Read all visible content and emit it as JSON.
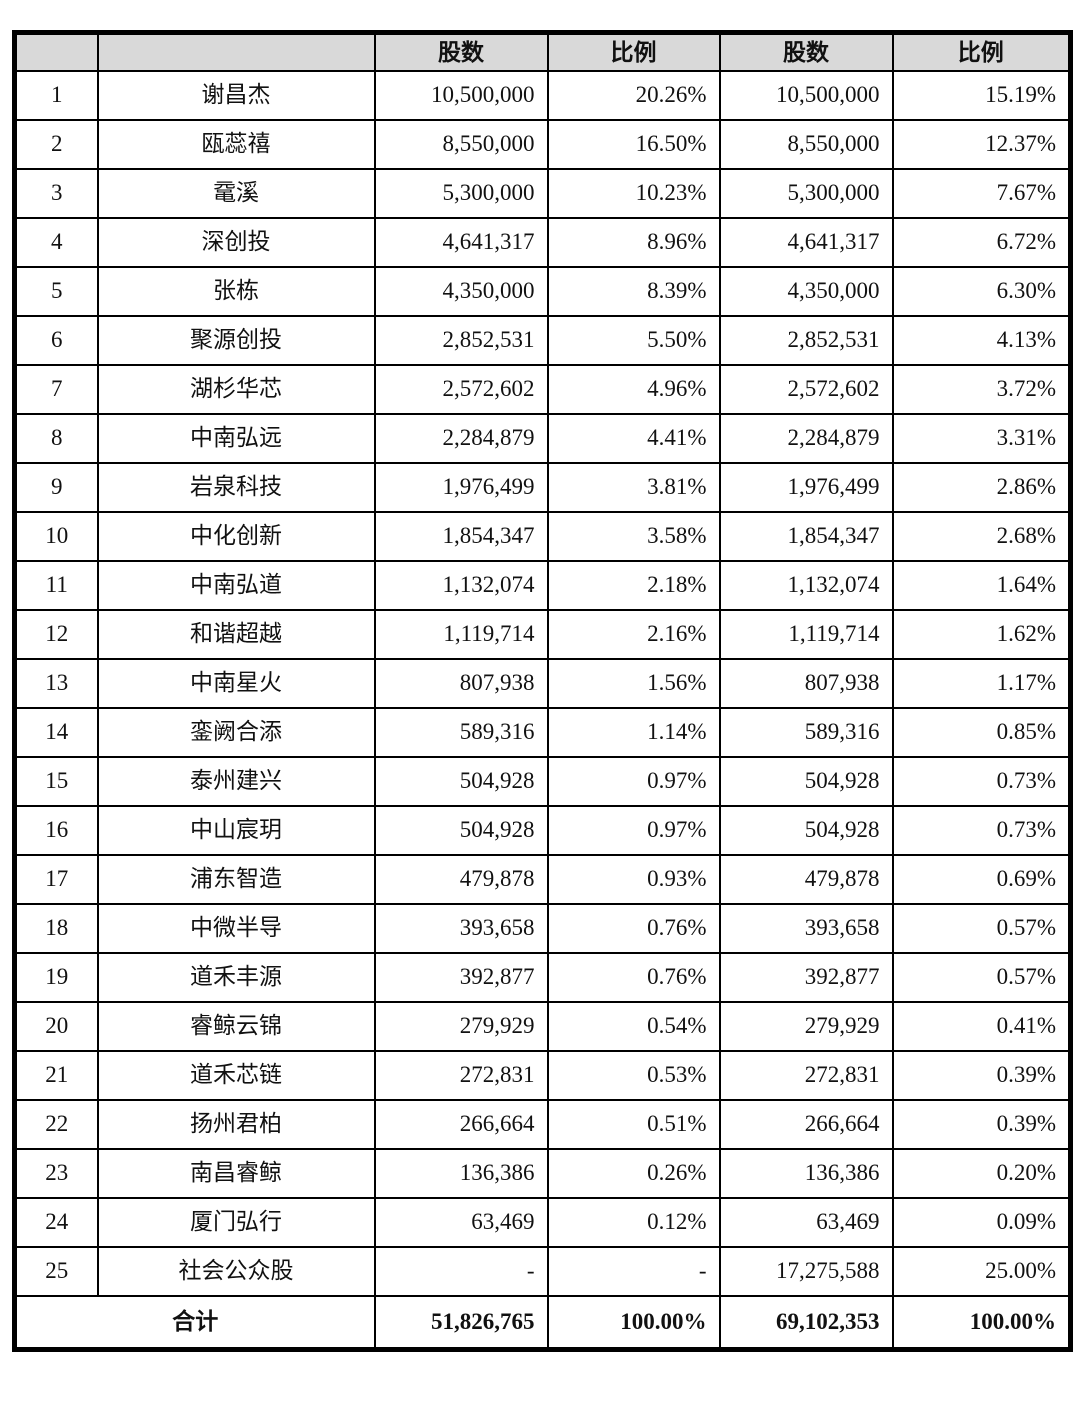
{
  "colors": {
    "header_bg": "#d9d9d9",
    "border": "#000000",
    "text": "#111111"
  },
  "table": {
    "headers": {
      "index": "",
      "name": "",
      "shares_a": "股数",
      "ratio_a": "比例",
      "shares_b": "股数",
      "ratio_b": "比例"
    },
    "rows": [
      {
        "no": "1",
        "name": "谢昌杰",
        "shares1": "10,500,000",
        "ratio1": "20.26%",
        "shares2": "10,500,000",
        "ratio2": "15.19%"
      },
      {
        "no": "2",
        "name": "瓯蕊禧",
        "shares1": "8,550,000",
        "ratio1": "16.50%",
        "shares2": "8,550,000",
        "ratio2": "12.37%"
      },
      {
        "no": "3",
        "name": "鼋溪",
        "shares1": "5,300,000",
        "ratio1": "10.23%",
        "shares2": "5,300,000",
        "ratio2": "7.67%"
      },
      {
        "no": "4",
        "name": "深创投",
        "shares1": "4,641,317",
        "ratio1": "8.96%",
        "shares2": "4,641,317",
        "ratio2": "6.72%"
      },
      {
        "no": "5",
        "name": "张栋",
        "shares1": "4,350,000",
        "ratio1": "8.39%",
        "shares2": "4,350,000",
        "ratio2": "6.30%"
      },
      {
        "no": "6",
        "name": "聚源创投",
        "shares1": "2,852,531",
        "ratio1": "5.50%",
        "shares2": "2,852,531",
        "ratio2": "4.13%"
      },
      {
        "no": "7",
        "name": "湖杉华芯",
        "shares1": "2,572,602",
        "ratio1": "4.96%",
        "shares2": "2,572,602",
        "ratio2": "3.72%"
      },
      {
        "no": "8",
        "name": "中南弘远",
        "shares1": "2,284,879",
        "ratio1": "4.41%",
        "shares2": "2,284,879",
        "ratio2": "3.31%"
      },
      {
        "no": "9",
        "name": "岩泉科技",
        "shares1": "1,976,499",
        "ratio1": "3.81%",
        "shares2": "1,976,499",
        "ratio2": "2.86%"
      },
      {
        "no": "10",
        "name": "中化创新",
        "shares1": "1,854,347",
        "ratio1": "3.58%",
        "shares2": "1,854,347",
        "ratio2": "2.68%"
      },
      {
        "no": "11",
        "name": "中南弘道",
        "shares1": "1,132,074",
        "ratio1": "2.18%",
        "shares2": "1,132,074",
        "ratio2": "1.64%"
      },
      {
        "no": "12",
        "name": "和谐超越",
        "shares1": "1,119,714",
        "ratio1": "2.16%",
        "shares2": "1,119,714",
        "ratio2": "1.62%"
      },
      {
        "no": "13",
        "name": "中南星火",
        "shares1": "807,938",
        "ratio1": "1.56%",
        "shares2": "807,938",
        "ratio2": "1.17%"
      },
      {
        "no": "14",
        "name": "銮阙合添",
        "shares1": "589,316",
        "ratio1": "1.14%",
        "shares2": "589,316",
        "ratio2": "0.85%"
      },
      {
        "no": "15",
        "name": "泰州建兴",
        "shares1": "504,928",
        "ratio1": "0.97%",
        "shares2": "504,928",
        "ratio2": "0.73%"
      },
      {
        "no": "16",
        "name": "中山宸玥",
        "shares1": "504,928",
        "ratio1": "0.97%",
        "shares2": "504,928",
        "ratio2": "0.73%"
      },
      {
        "no": "17",
        "name": "浦东智造",
        "shares1": "479,878",
        "ratio1": "0.93%",
        "shares2": "479,878",
        "ratio2": "0.69%"
      },
      {
        "no": "18",
        "name": "中微半导",
        "shares1": "393,658",
        "ratio1": "0.76%",
        "shares2": "393,658",
        "ratio2": "0.57%"
      },
      {
        "no": "19",
        "name": "道禾丰源",
        "shares1": "392,877",
        "ratio1": "0.76%",
        "shares2": "392,877",
        "ratio2": "0.57%"
      },
      {
        "no": "20",
        "name": "睿鲸云锦",
        "shares1": "279,929",
        "ratio1": "0.54%",
        "shares2": "279,929",
        "ratio2": "0.41%"
      },
      {
        "no": "21",
        "name": "道禾芯链",
        "shares1": "272,831",
        "ratio1": "0.53%",
        "shares2": "272,831",
        "ratio2": "0.39%"
      },
      {
        "no": "22",
        "name": "扬州君柏",
        "shares1": "266,664",
        "ratio1": "0.51%",
        "shares2": "266,664",
        "ratio2": "0.39%"
      },
      {
        "no": "23",
        "name": "南昌睿鲸",
        "shares1": "136,386",
        "ratio1": "0.26%",
        "shares2": "136,386",
        "ratio2": "0.20%"
      },
      {
        "no": "24",
        "name": "厦门弘行",
        "shares1": "63,469",
        "ratio1": "0.12%",
        "shares2": "63,469",
        "ratio2": "0.09%"
      },
      {
        "no": "25",
        "name": "社会公众股",
        "shares1": "-",
        "ratio1": "-",
        "shares2": "17,275,588",
        "ratio2": "25.00%"
      }
    ],
    "total": {
      "label": "合计",
      "shares1": "51,826,765",
      "ratio1": "100.00%",
      "shares2": "69,102,353",
      "ratio2": "100.00%"
    }
  }
}
